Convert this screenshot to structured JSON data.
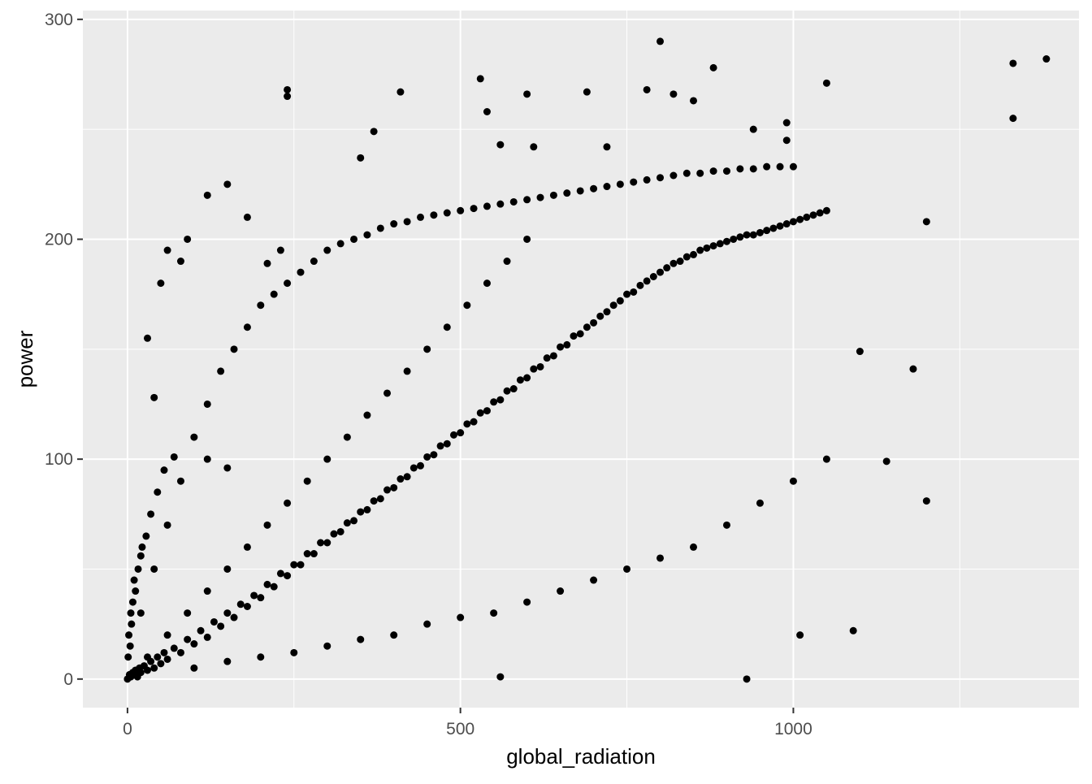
{
  "chart_data": {
    "type": "scatter",
    "xlabel": "global_radiation",
    "ylabel": "power",
    "xlim": [
      -67,
      1429
    ],
    "ylim": [
      -13,
      304
    ],
    "x_ticks": [
      0,
      500,
      1000
    ],
    "y_ticks": [
      0,
      100,
      200,
      300
    ],
    "x_tick_labels": [
      "0",
      "500",
      "1000"
    ],
    "y_tick_labels": [
      "0",
      "100",
      "200",
      "300"
    ],
    "grid": true,
    "point_color": "#000000",
    "panel_background": "#ebebeb",
    "grid_color": "#ffffff",
    "series": [
      {
        "values_description": "",
        "points": [
          [
            0,
            0
          ],
          [
            3,
            2
          ],
          [
            5,
            1
          ],
          [
            8,
            3
          ],
          [
            10,
            2
          ],
          [
            12,
            4
          ],
          [
            15,
            1
          ],
          [
            18,
            5
          ],
          [
            20,
            3
          ],
          [
            25,
            6
          ],
          [
            30,
            4
          ],
          [
            35,
            8
          ],
          [
            40,
            5
          ],
          [
            45,
            10
          ],
          [
            50,
            7
          ],
          [
            55,
            12
          ],
          [
            60,
            9
          ],
          [
            70,
            14
          ],
          [
            80,
            12
          ],
          [
            90,
            18
          ],
          [
            100,
            16
          ],
          [
            110,
            22
          ],
          [
            120,
            19
          ],
          [
            130,
            26
          ],
          [
            140,
            24
          ],
          [
            150,
            30
          ],
          [
            160,
            28
          ],
          [
            170,
            34
          ],
          [
            180,
            33
          ],
          [
            190,
            38
          ],
          [
            200,
            37
          ],
          [
            210,
            43
          ],
          [
            220,
            42
          ],
          [
            230,
            48
          ],
          [
            240,
            47
          ],
          [
            250,
            52
          ],
          [
            260,
            52
          ],
          [
            270,
            57
          ],
          [
            280,
            57
          ],
          [
            290,
            62
          ],
          [
            300,
            62
          ],
          [
            310,
            66
          ],
          [
            320,
            67
          ],
          [
            330,
            71
          ],
          [
            340,
            72
          ],
          [
            350,
            76
          ],
          [
            360,
            77
          ],
          [
            370,
            81
          ],
          [
            380,
            82
          ],
          [
            390,
            86
          ],
          [
            400,
            87
          ],
          [
            410,
            91
          ],
          [
            420,
            92
          ],
          [
            430,
            96
          ],
          [
            440,
            97
          ],
          [
            450,
            101
          ],
          [
            460,
            102
          ],
          [
            470,
            106
          ],
          [
            480,
            107
          ],
          [
            490,
            111
          ],
          [
            500,
            112
          ],
          [
            510,
            116
          ],
          [
            520,
            117
          ],
          [
            530,
            121
          ],
          [
            540,
            122
          ],
          [
            550,
            126
          ],
          [
            560,
            127
          ],
          [
            570,
            131
          ],
          [
            580,
            132
          ],
          [
            590,
            136
          ],
          [
            600,
            137
          ],
          [
            610,
            141
          ],
          [
            620,
            142
          ],
          [
            630,
            146
          ],
          [
            640,
            147
          ],
          [
            650,
            151
          ],
          [
            660,
            152
          ],
          [
            670,
            156
          ],
          [
            680,
            157
          ],
          [
            690,
            160
          ],
          [
            700,
            162
          ],
          [
            710,
            165
          ],
          [
            720,
            167
          ],
          [
            730,
            170
          ],
          [
            740,
            172
          ],
          [
            750,
            175
          ],
          [
            760,
            176
          ],
          [
            770,
            179
          ],
          [
            780,
            181
          ],
          [
            790,
            183
          ],
          [
            800,
            185
          ],
          [
            810,
            187
          ],
          [
            820,
            189
          ],
          [
            830,
            190
          ],
          [
            840,
            192
          ],
          [
            850,
            193
          ],
          [
            860,
            195
          ],
          [
            870,
            196
          ],
          [
            880,
            197
          ],
          [
            890,
            198
          ],
          [
            900,
            199
          ],
          [
            910,
            200
          ],
          [
            920,
            201
          ],
          [
            930,
            202
          ],
          [
            940,
            202
          ],
          [
            950,
            203
          ],
          [
            960,
            204
          ],
          [
            970,
            205
          ],
          [
            980,
            206
          ],
          [
            990,
            207
          ],
          [
            1000,
            208
          ],
          [
            1010,
            209
          ],
          [
            1020,
            210
          ],
          [
            1030,
            211
          ],
          [
            1040,
            212
          ],
          [
            1050,
            213
          ],
          [
            20,
            30
          ],
          [
            40,
            50
          ],
          [
            60,
            70
          ],
          [
            80,
            90
          ],
          [
            100,
            110
          ],
          [
            120,
            125
          ],
          [
            140,
            140
          ],
          [
            160,
            150
          ],
          [
            180,
            160
          ],
          [
            200,
            170
          ],
          [
            220,
            175
          ],
          [
            240,
            180
          ],
          [
            260,
            185
          ],
          [
            280,
            190
          ],
          [
            300,
            195
          ],
          [
            320,
            198
          ],
          [
            340,
            200
          ],
          [
            360,
            202
          ],
          [
            380,
            205
          ],
          [
            400,
            207
          ],
          [
            420,
            208
          ],
          [
            440,
            210
          ],
          [
            460,
            211
          ],
          [
            480,
            212
          ],
          [
            500,
            213
          ],
          [
            520,
            214
          ],
          [
            540,
            215
          ],
          [
            560,
            216
          ],
          [
            580,
            217
          ],
          [
            600,
            218
          ],
          [
            620,
            219
          ],
          [
            640,
            220
          ],
          [
            660,
            221
          ],
          [
            680,
            222
          ],
          [
            700,
            223
          ],
          [
            720,
            224
          ],
          [
            740,
            225
          ],
          [
            760,
            226
          ],
          [
            780,
            227
          ],
          [
            800,
            228
          ],
          [
            820,
            229
          ],
          [
            840,
            230
          ],
          [
            860,
            230
          ],
          [
            880,
            231
          ],
          [
            900,
            231
          ],
          [
            920,
            232
          ],
          [
            940,
            232
          ],
          [
            960,
            233
          ],
          [
            980,
            233
          ],
          [
            1000,
            233
          ],
          [
            30,
            10
          ],
          [
            60,
            20
          ],
          [
            90,
            30
          ],
          [
            120,
            40
          ],
          [
            150,
            50
          ],
          [
            180,
            60
          ],
          [
            210,
            70
          ],
          [
            240,
            80
          ],
          [
            270,
            90
          ],
          [
            300,
            100
          ],
          [
            330,
            110
          ],
          [
            360,
            120
          ],
          [
            390,
            130
          ],
          [
            420,
            140
          ],
          [
            450,
            150
          ],
          [
            480,
            160
          ],
          [
            510,
            170
          ],
          [
            540,
            180
          ],
          [
            570,
            190
          ],
          [
            600,
            200
          ],
          [
            100,
            5
          ],
          [
            150,
            8
          ],
          [
            200,
            10
          ],
          [
            250,
            12
          ],
          [
            300,
            15
          ],
          [
            350,
            18
          ],
          [
            400,
            20
          ],
          [
            450,
            25
          ],
          [
            500,
            28
          ],
          [
            550,
            30
          ],
          [
            600,
            35
          ],
          [
            650,
            40
          ],
          [
            700,
            45
          ],
          [
            750,
            50
          ],
          [
            800,
            55
          ],
          [
            850,
            60
          ],
          [
            900,
            70
          ],
          [
            950,
            80
          ],
          [
            1000,
            90
          ],
          [
            1050,
            100
          ],
          [
            50,
            180
          ],
          [
            80,
            190
          ],
          [
            120,
            220
          ],
          [
            150,
            225
          ],
          [
            180,
            210
          ],
          [
            240,
            265
          ],
          [
            240,
            268
          ],
          [
            410,
            267
          ],
          [
            530,
            273
          ],
          [
            800,
            290
          ],
          [
            880,
            278
          ],
          [
            1330,
            280
          ],
          [
            1380,
            282
          ],
          [
            1330,
            255
          ],
          [
            1200,
            208
          ],
          [
            1200,
            81
          ],
          [
            1140,
            99
          ],
          [
            1180,
            141
          ],
          [
            1100,
            149
          ],
          [
            1090,
            22
          ],
          [
            930,
            0
          ],
          [
            560,
            1
          ],
          [
            1010,
            20
          ],
          [
            990,
            253
          ],
          [
            1050,
            271
          ],
          [
            540,
            258
          ],
          [
            600,
            266
          ],
          [
            690,
            267
          ],
          [
            780,
            268
          ],
          [
            820,
            266
          ],
          [
            850,
            263
          ],
          [
            940,
            250
          ],
          [
            990,
            245
          ],
          [
            720,
            242
          ],
          [
            610,
            242
          ],
          [
            560,
            243
          ],
          [
            370,
            249
          ],
          [
            350,
            237
          ],
          [
            230,
            195
          ],
          [
            210,
            189
          ],
          [
            90,
            200
          ],
          [
            60,
            195
          ],
          [
            30,
            155
          ],
          [
            40,
            128
          ],
          [
            70,
            101
          ],
          [
            120,
            100
          ],
          [
            150,
            96
          ],
          [
            20,
            56
          ],
          [
            10,
            45
          ],
          [
            5,
            30
          ],
          [
            2,
            20
          ],
          [
            1,
            10
          ],
          [
            4,
            15
          ],
          [
            6,
            25
          ],
          [
            8,
            35
          ],
          [
            12,
            40
          ],
          [
            16,
            50
          ],
          [
            22,
            60
          ],
          [
            28,
            65
          ],
          [
            35,
            75
          ],
          [
            45,
            85
          ],
          [
            55,
            95
          ]
        ]
      }
    ]
  }
}
